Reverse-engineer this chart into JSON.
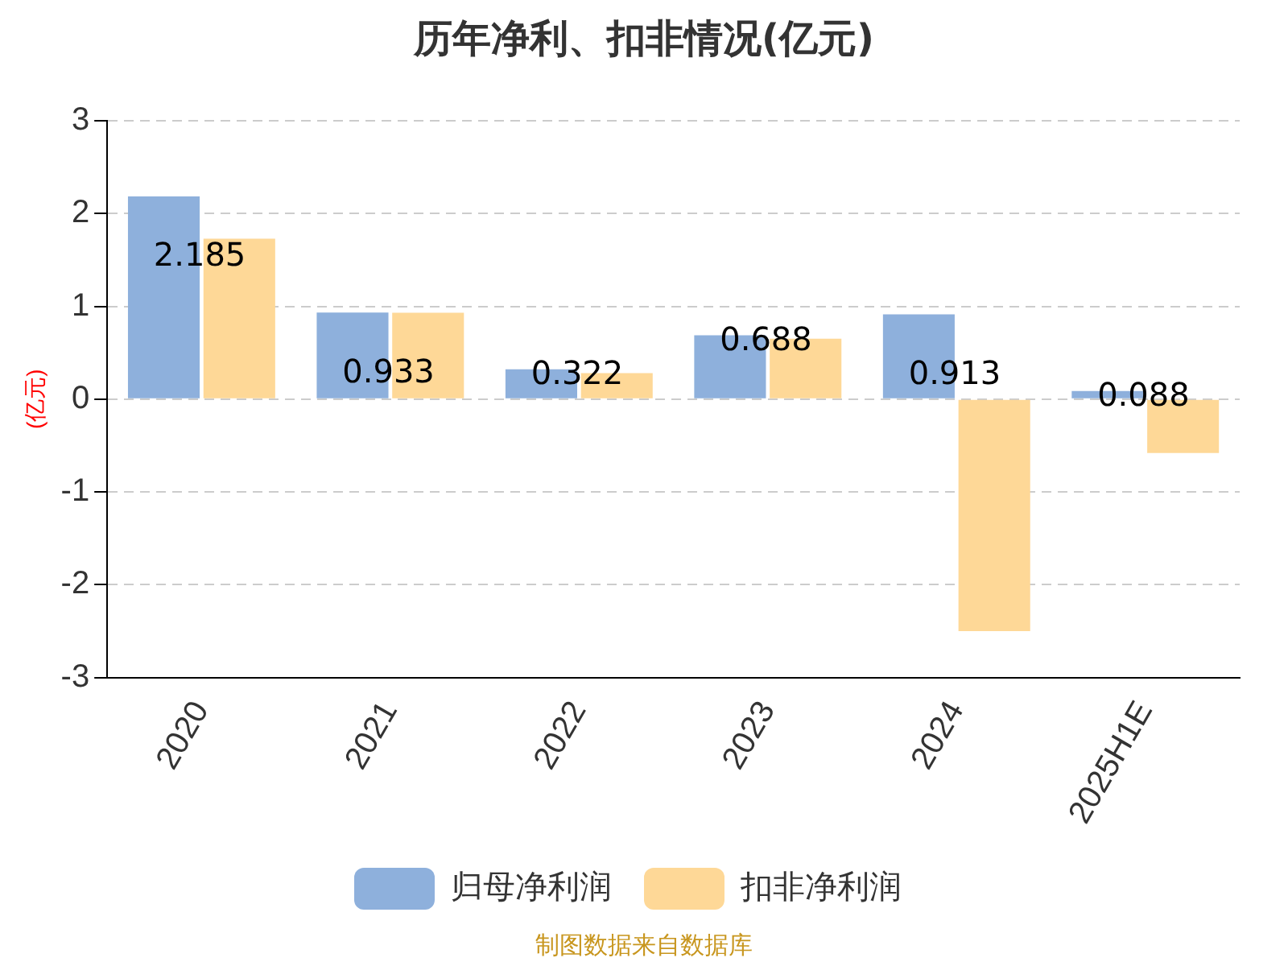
{
  "chart_data": {
    "type": "bar",
    "title": "历年净利、扣非情况(亿元)",
    "ylabel": "(亿元)",
    "categories": [
      "2020",
      "2021",
      "2022",
      "2023",
      "2024",
      "2025H1E"
    ],
    "series": [
      {
        "name": "归母净利润",
        "color": "#8eb0dc",
        "values": [
          2.185,
          0.933,
          0.322,
          0.688,
          0.913,
          0.088
        ],
        "value_labels": [
          "2.185",
          "0.933",
          "0.322",
          "0.688",
          "0.913",
          "0.088"
        ]
      },
      {
        "name": "扣非净利润",
        "color": "#fed897",
        "values": [
          1.73,
          0.93,
          0.28,
          0.65,
          -2.5,
          -0.58
        ]
      }
    ],
    "ylim": [
      -3,
      3
    ],
    "yticks": [
      -3,
      -2,
      -1,
      0,
      1,
      2,
      3
    ],
    "grid": "y",
    "legend": "bottom",
    "annotations": [
      "制图数据来自数据库"
    ]
  }
}
